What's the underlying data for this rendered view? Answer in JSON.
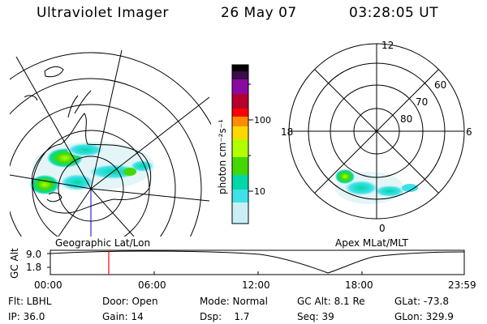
{
  "header": {
    "instrument": "Ultraviolet Imager",
    "date": "26 May 07",
    "time": "03:28:05 UT"
  },
  "left_panel": {
    "label": "Geographic Lat/Lon"
  },
  "right_panel": {
    "label": "Apex MLat/MLT",
    "mlt_labels": [
      "12",
      "18",
      "6",
      "0"
    ],
    "lat_labels": [
      "60",
      "70",
      "80"
    ]
  },
  "colorbar": {
    "unit_label": "photon cm⁻²s⁻¹",
    "ticks": [
      "100",
      "10"
    ],
    "colors": [
      "#000000",
      "#3d0a4a",
      "#8a0aa0",
      "#b5002e",
      "#ff0000",
      "#ff8c00",
      "#ffd700",
      "#b0ff00",
      "#44d800",
      "#00d8a8",
      "#40e0e8",
      "#c8f0f4"
    ]
  },
  "altitude_strip": {
    "axis_label": "GC Alt",
    "y_ticks": [
      "9.0",
      "1.8"
    ],
    "x_ticks": [
      "00:00",
      "06:00",
      "12:00",
      "18:00",
      "23:59"
    ],
    "marker_color": "#ff0000"
  },
  "footer": {
    "flt": "Flt: LBHL",
    "ip": "IP: 36.0",
    "door": "Door: Open",
    "gain": "Gain: 14",
    "mode": "Mode: Normal",
    "dsp": "Dsp:    1.7",
    "gc_alt": "GC Alt: 8.1 Re",
    "seq": "Seq: 39",
    "glat": "GLat: -73.8",
    "glon": "GLon: 329.9"
  }
}
